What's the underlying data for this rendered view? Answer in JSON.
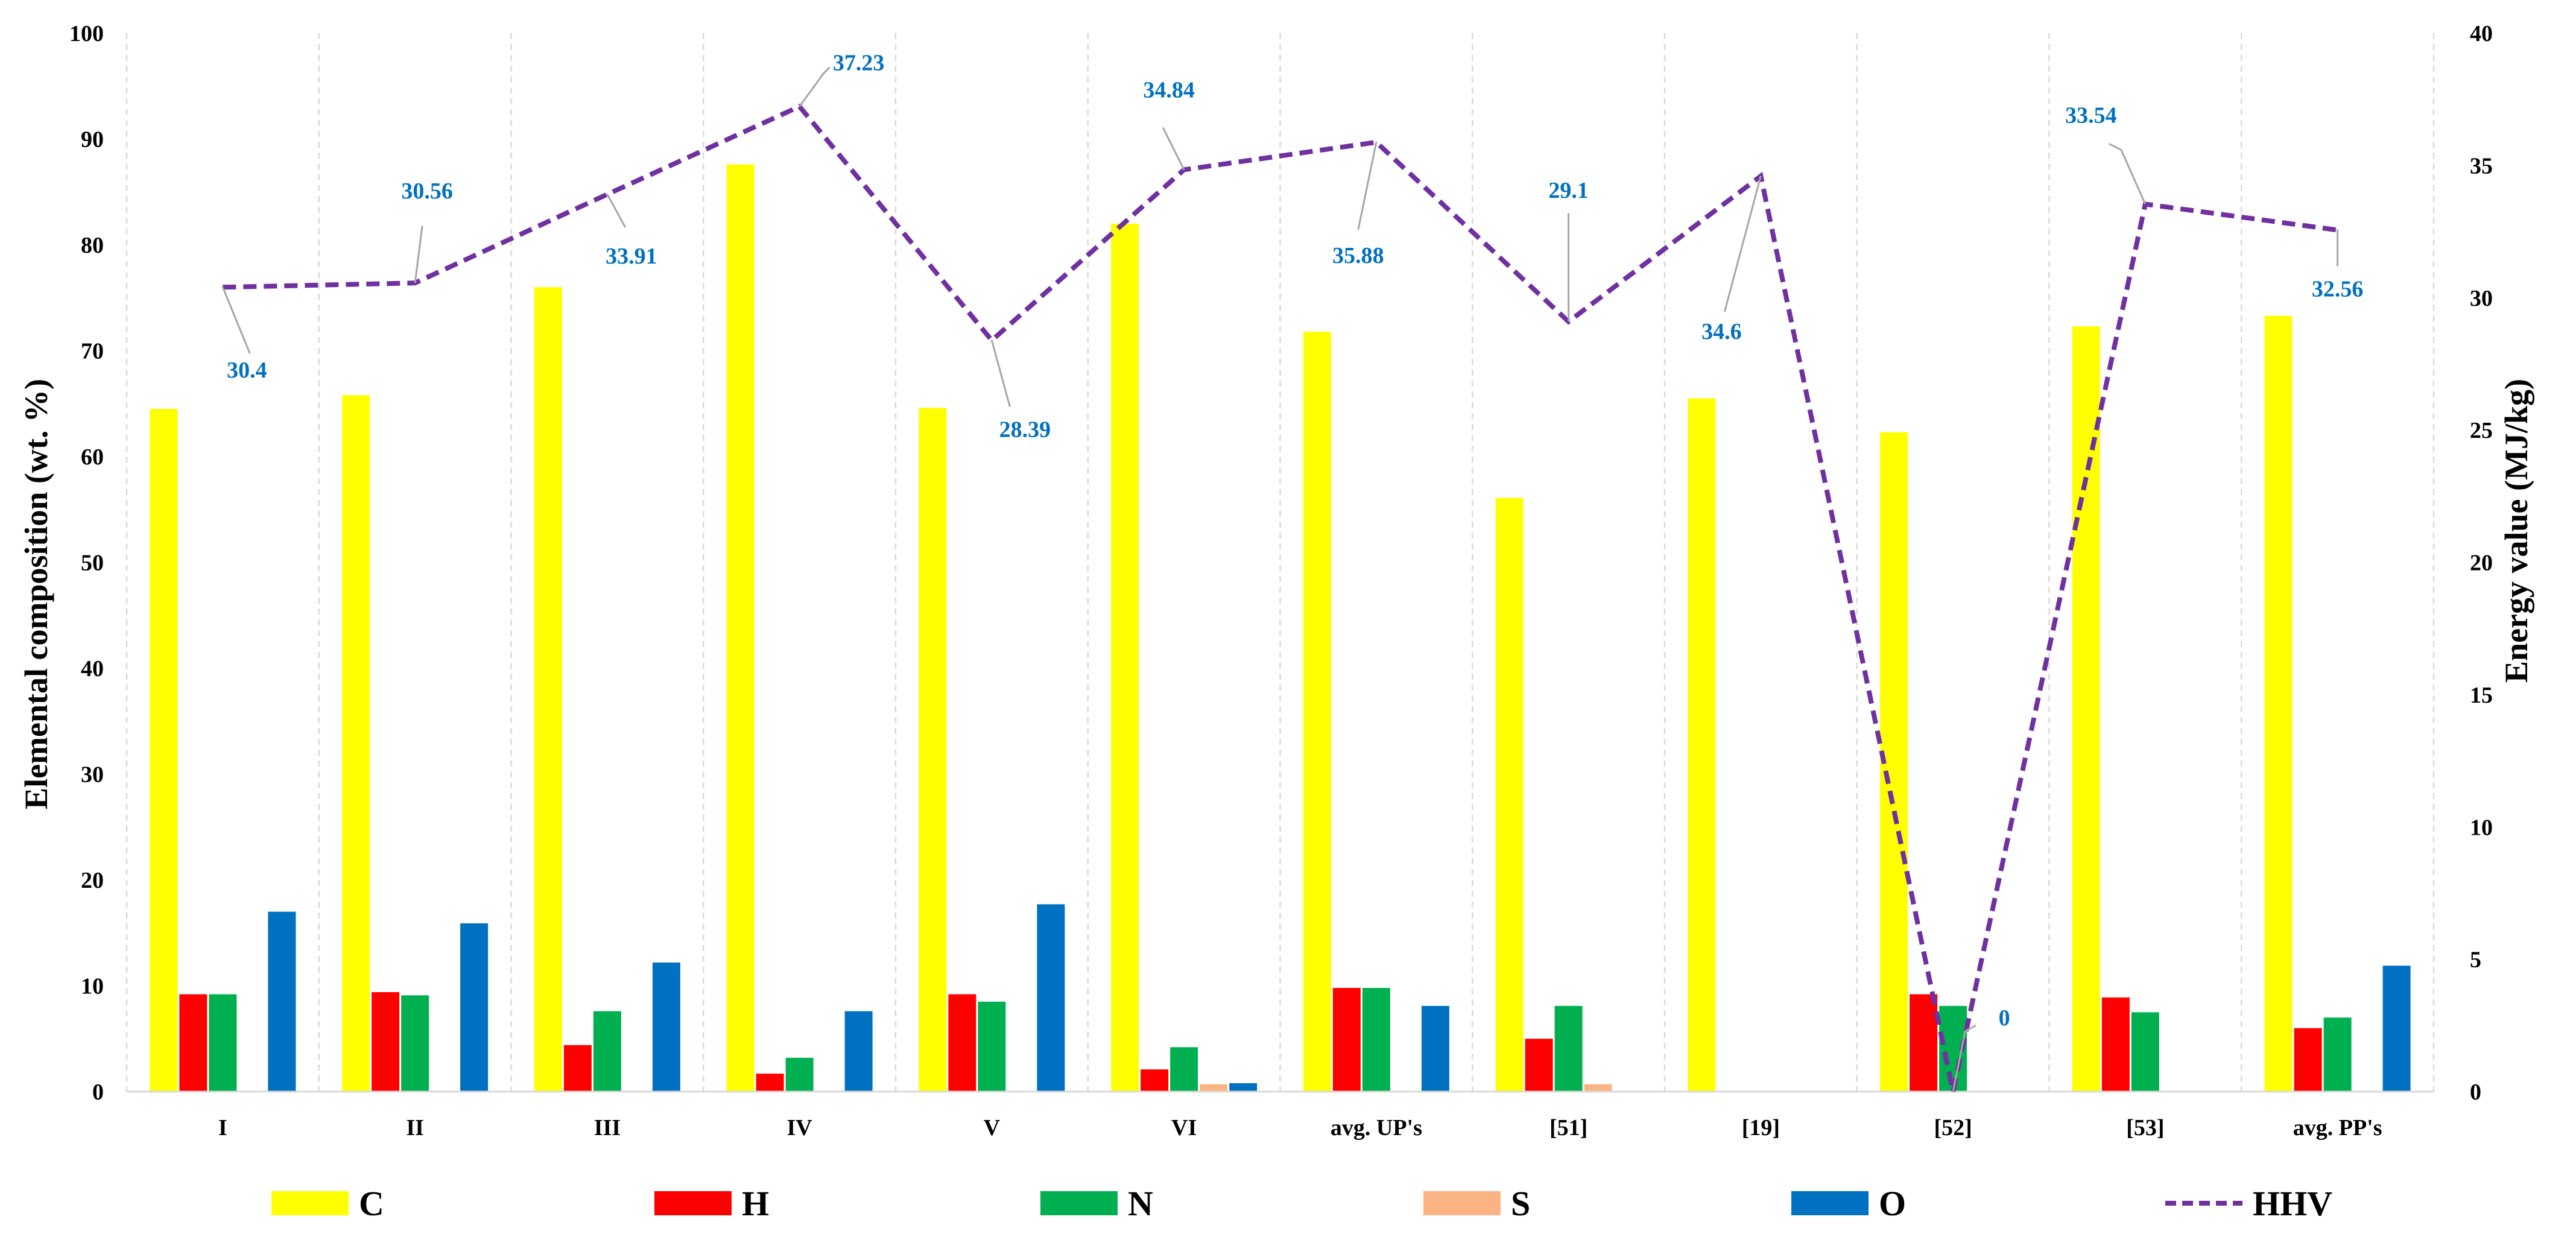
{
  "chart_data": {
    "type": "bar",
    "title": "",
    "categories": [
      "I",
      "II",
      "III",
      "IV",
      "V",
      "VI",
      "avg. UP's",
      "[51]",
      "[19]",
      "[52]",
      "[53]",
      "avg. PP's"
    ],
    "series": [
      {
        "name": "C",
        "color": "#ffff00",
        "values": [
          64.5,
          65.8,
          76.0,
          87.6,
          64.6,
          82.0,
          71.8,
          56.1,
          65.5,
          62.3,
          72.3,
          73.3
        ]
      },
      {
        "name": "H",
        "color": "#ff0000",
        "values": [
          9.2,
          9.4,
          4.4,
          1.7,
          9.2,
          2.1,
          9.8,
          5.0,
          0,
          9.2,
          8.9,
          6.0
        ]
      },
      {
        "name": "N",
        "color": "#00b050",
        "values": [
          9.2,
          9.1,
          7.6,
          3.2,
          8.5,
          4.2,
          9.8,
          8.1,
          0,
          8.1,
          7.5,
          7.0
        ]
      },
      {
        "name": "S",
        "color": "#fbb383",
        "values": [
          0,
          0,
          0,
          0,
          0,
          0.7,
          0,
          0.7,
          0,
          0,
          0,
          0
        ]
      },
      {
        "name": "O",
        "color": "#0070c0",
        "values": [
          17.0,
          15.9,
          12.2,
          7.6,
          17.7,
          0.8,
          8.1,
          0,
          0,
          0,
          0,
          11.9
        ]
      }
    ],
    "line_series": {
      "name": "HHV",
      "color": "#7030a0",
      "axis": "right",
      "values": [
        30.4,
        30.56,
        33.91,
        37.23,
        28.39,
        34.84,
        35.88,
        29.1,
        34.6,
        0,
        33.54,
        32.56
      ],
      "labels": [
        "30.4",
        "30.56",
        "33.91",
        "37.23",
        "28.39",
        "34.84",
        "35.88",
        "29.1",
        "34.6",
        "0",
        "33.54",
        "32.56"
      ]
    },
    "ylabel": "Elemental composition (wt. %)",
    "y2label": "Energy value (MJ/kg)",
    "xlabel": "",
    "ylim": [
      0,
      100
    ],
    "y2lim": [
      0,
      40
    ],
    "yticks": [
      "0",
      "10",
      "20",
      "30",
      "40",
      "50",
      "60",
      "70",
      "80",
      "90",
      "100"
    ],
    "y2ticks": [
      "0",
      "5",
      "10",
      "15",
      "20",
      "25",
      "30",
      "35",
      "40"
    ],
    "grid": "vertical dashed",
    "legend_position": "bottom",
    "legend": [
      "C",
      "H",
      "N",
      "S",
      "O",
      "HHV"
    ]
  }
}
